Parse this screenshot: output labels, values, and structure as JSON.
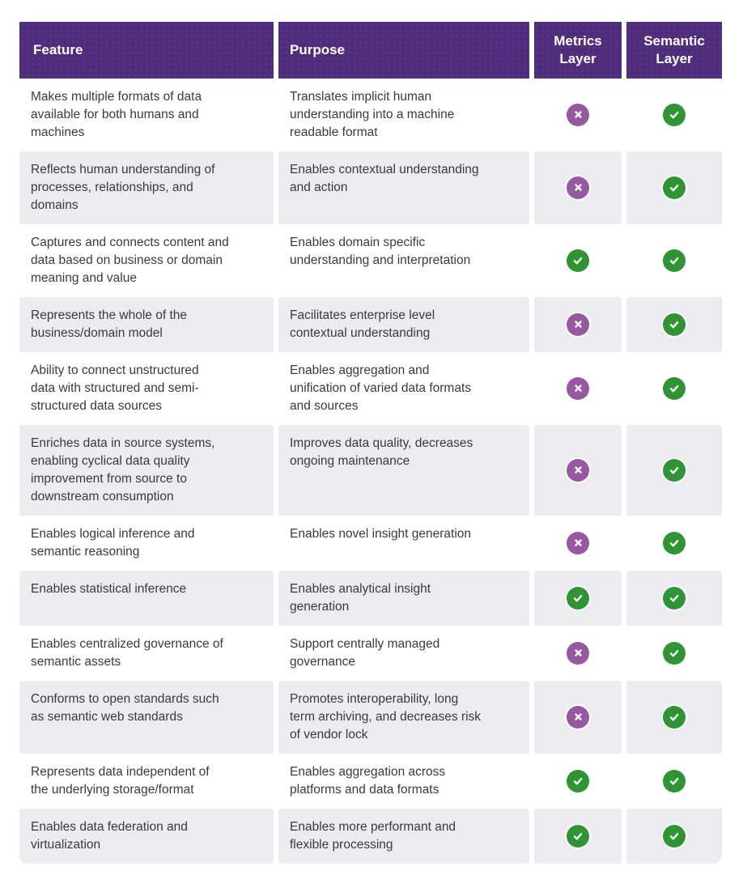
{
  "chart_data": {
    "type": "table",
    "columns": [
      "Feature",
      "Purpose",
      "Metrics Layer",
      "Semantic Layer"
    ],
    "rows": [
      {
        "feature": "Makes multiple formats of data\navailable for both humans and\nmachines",
        "purpose": "Translates implicit human\nunderstanding into a machine\nreadable format",
        "metrics_layer": "no",
        "semantic_layer": "yes"
      },
      {
        "feature": "Reflects human understanding of\nprocesses, relationships, and\ndomains",
        "purpose": "Enables contextual understanding\nand action",
        "metrics_layer": "no",
        "semantic_layer": "yes"
      },
      {
        "feature": "Captures and connects content and\ndata based on business or domain\nmeaning and value",
        "purpose": "Enables domain specific\nunderstanding and interpretation",
        "metrics_layer": "yes",
        "semantic_layer": "yes"
      },
      {
        "feature": "Represents the whole of the\nbusiness/domain model",
        "purpose": "Facilitates enterprise level\ncontextual understanding",
        "metrics_layer": "no",
        "semantic_layer": "yes"
      },
      {
        "feature": "Ability to connect unstructured\ndata with structured and semi-\nstructured data sources",
        "purpose": "Enables aggregation and\nunification of varied data formats\nand sources",
        "metrics_layer": "no",
        "semantic_layer": "yes"
      },
      {
        "feature": "Enriches data in source systems,\nenabling cyclical data quality\nimprovement from source to\ndownstream consumption",
        "purpose": "Improves data quality, decreases\nongoing maintenance",
        "metrics_layer": "no",
        "semantic_layer": "yes"
      },
      {
        "feature": "Enables logical inference and\nsemantic reasoning",
        "purpose": "Enables novel insight generation",
        "metrics_layer": "no",
        "semantic_layer": "yes"
      },
      {
        "feature": "Enables statistical inference",
        "purpose": "Enables analytical insight\ngeneration",
        "metrics_layer": "yes",
        "semantic_layer": "yes"
      },
      {
        "feature": "Enables centralized governance of\nsemantic assets",
        "purpose": "Support centrally managed\ngovernance",
        "metrics_layer": "no",
        "semantic_layer": "yes"
      },
      {
        "feature": "Conforms to open standards such\nas semantic web standards",
        "purpose": "Promotes interoperability, long\nterm archiving, and decreases risk\nof vendor lock",
        "metrics_layer": "no",
        "semantic_layer": "yes"
      },
      {
        "feature": "Represents data independent of\nthe underlying storage/format",
        "purpose": "Enables aggregation across\nplatforms and data formats",
        "metrics_layer": "yes",
        "semantic_layer": "yes"
      },
      {
        "feature": "Enables data federation and\nvirtualization",
        "purpose": "Enables more performant and\nflexible processing",
        "metrics_layer": "yes",
        "semantic_layer": "yes"
      }
    ]
  },
  "icons": {
    "yes": "check-icon",
    "no": "cross-icon"
  },
  "colors": {
    "header_bg": "#4F2C7C",
    "header_text": "#FFFFFF",
    "row_alt_bg": "#ECEBEF",
    "body_text": "#3A3A3C",
    "check_bg": "#2F9434",
    "cross_bg": "#9757A1",
    "page_bg": "#FFFFFF"
  }
}
